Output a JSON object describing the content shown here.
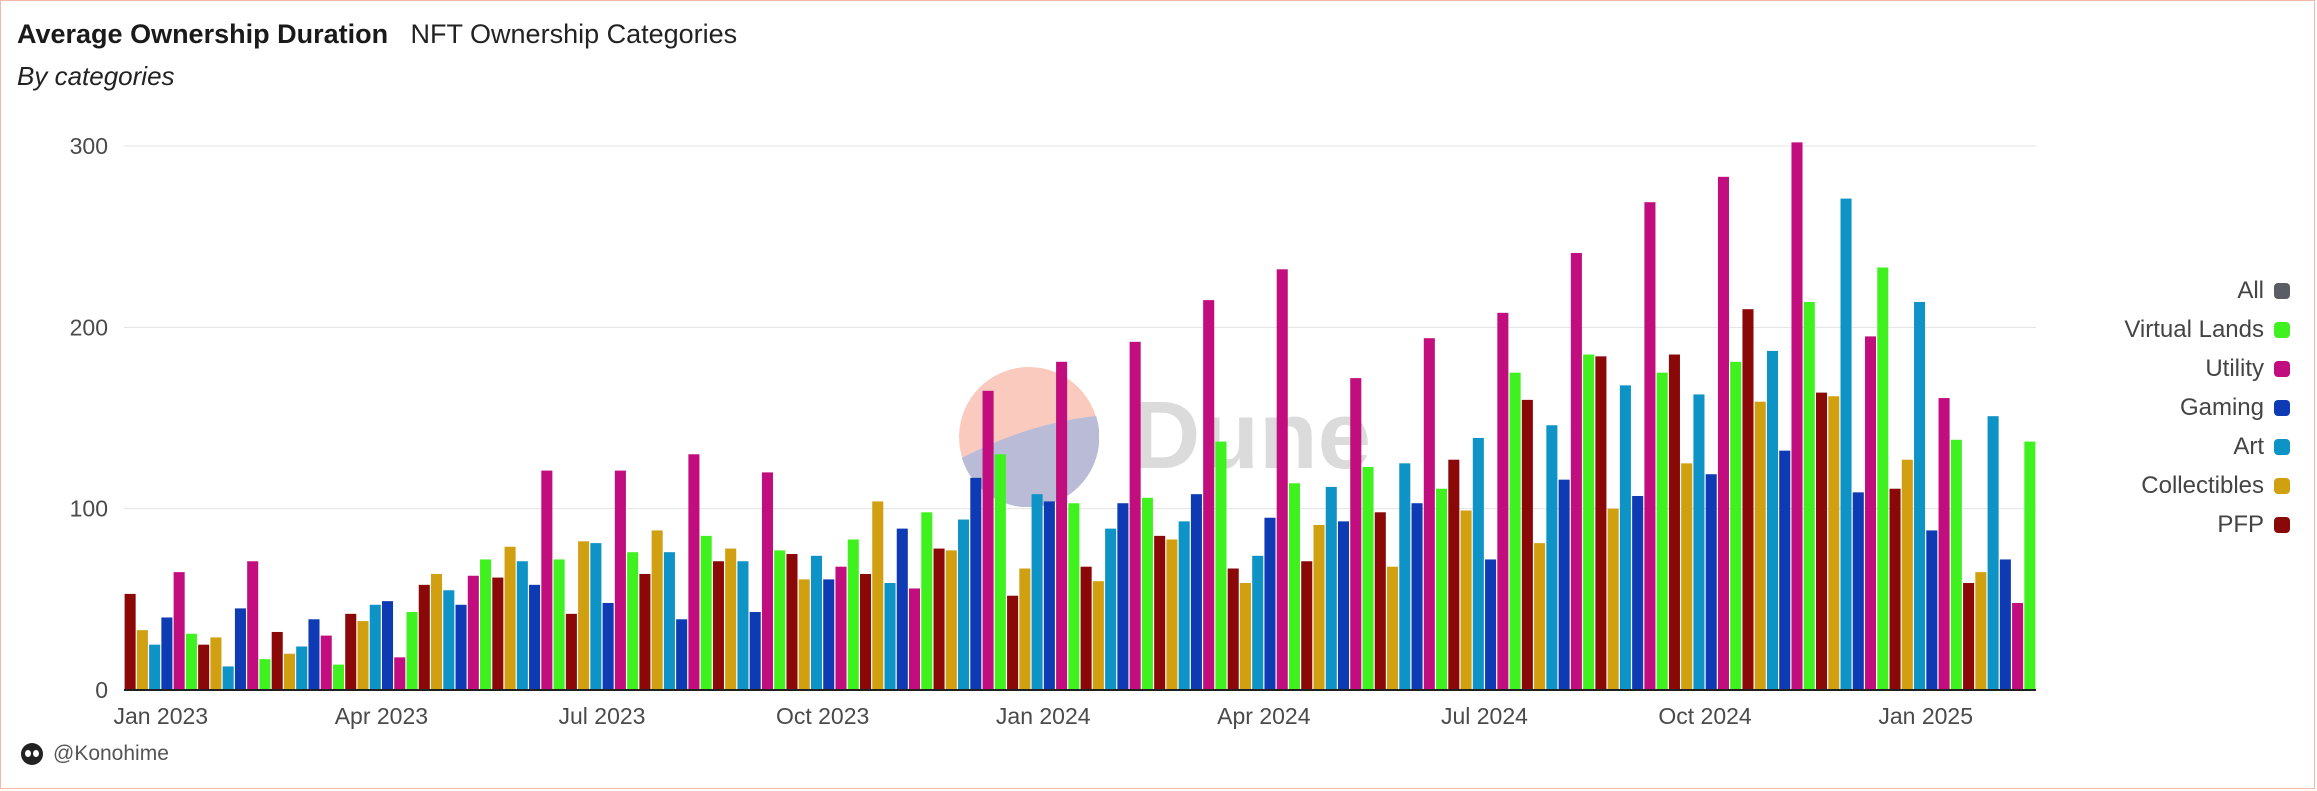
{
  "header": {
    "title": "Average Ownership Duration",
    "subtitle": "NFT Ownership Categories",
    "description": "By categories"
  },
  "footer": {
    "author": "@Konohime"
  },
  "watermark": {
    "text": "Dune"
  },
  "legend": [
    {
      "label": "All",
      "color": "#5a5d63"
    },
    {
      "label": "Virtual Lands",
      "color": "#3ff21f"
    },
    {
      "label": "Utility",
      "color": "#c20d7e"
    },
    {
      "label": "Gaming",
      "color": "#0e3bb3"
    },
    {
      "label": "Art",
      "color": "#0e93c6"
    },
    {
      "label": "Collectibles",
      "color": "#d0a011"
    },
    {
      "label": "PFP",
      "color": "#8a0808"
    }
  ],
  "chart_data": {
    "type": "bar",
    "title": "Average Ownership Duration",
    "ylim": [
      0,
      300
    ],
    "yticks": [
      0,
      100,
      200,
      300
    ],
    "grid": true,
    "legend_position": "right",
    "x_tick_labels": [
      "Jan 2023",
      "Apr 2023",
      "Jul 2023",
      "Oct 2023",
      "Jan 2024",
      "Apr 2024",
      "Jul 2024",
      "Oct 2024",
      "Jan 2025"
    ],
    "categories": [
      "2023-01",
      "2023-02",
      "2023-03",
      "2023-04",
      "2023-05",
      "2023-06",
      "2023-07",
      "2023-08",
      "2023-09",
      "2023-10",
      "2023-11",
      "2023-12",
      "2024-01",
      "2024-02",
      "2024-03",
      "2024-04",
      "2024-05",
      "2024-06",
      "2024-07",
      "2024-08",
      "2024-09",
      "2024-10",
      "2024-11",
      "2024-12",
      "2025-01",
      "2025-02"
    ],
    "series": [
      {
        "name": "PFP",
        "color": "#8a0808",
        "values": [
          53,
          25,
          32,
          42,
          58,
          62,
          42,
          64,
          71,
          75,
          64,
          78,
          52,
          68,
          85,
          67,
          71,
          98,
          127,
          160,
          184,
          185,
          210,
          164,
          111,
          59
        ]
      },
      {
        "name": "Collectibles",
        "color": "#d0a011",
        "values": [
          33,
          29,
          20,
          38,
          64,
          79,
          82,
          88,
          78,
          61,
          104,
          77,
          67,
          60,
          83,
          59,
          91,
          68,
          99,
          81,
          100,
          125,
          159,
          162,
          127,
          65
        ]
      },
      {
        "name": "Art",
        "color": "#0e93c6",
        "values": [
          25,
          13,
          24,
          47,
          55,
          71,
          81,
          76,
          71,
          74,
          59,
          94,
          108,
          89,
          93,
          74,
          112,
          125,
          139,
          146,
          168,
          163,
          187,
          271,
          214,
          151
        ]
      },
      {
        "name": "Gaming",
        "color": "#0e3bb3",
        "values": [
          40,
          45,
          39,
          49,
          47,
          58,
          48,
          39,
          43,
          61,
          89,
          117,
          104,
          103,
          108,
          95,
          93,
          103,
          72,
          116,
          107,
          119,
          132,
          109,
          88,
          72
        ]
      },
      {
        "name": "Utility",
        "color": "#c20d7e",
        "values": [
          65,
          71,
          30,
          18,
          63,
          121,
          121,
          130,
          120,
          68,
          56,
          165,
          181,
          192,
          215,
          232,
          172,
          194,
          208,
          241,
          269,
          283,
          302,
          195,
          161,
          48
        ]
      },
      {
        "name": "Virtual Lands",
        "color": "#3ff21f",
        "values": [
          31,
          17,
          14,
          43,
          72,
          72,
          76,
          85,
          77,
          83,
          98,
          130,
          103,
          106,
          137,
          114,
          123,
          111,
          175,
          185,
          175,
          181,
          214,
          233,
          138,
          137
        ]
      }
    ]
  }
}
